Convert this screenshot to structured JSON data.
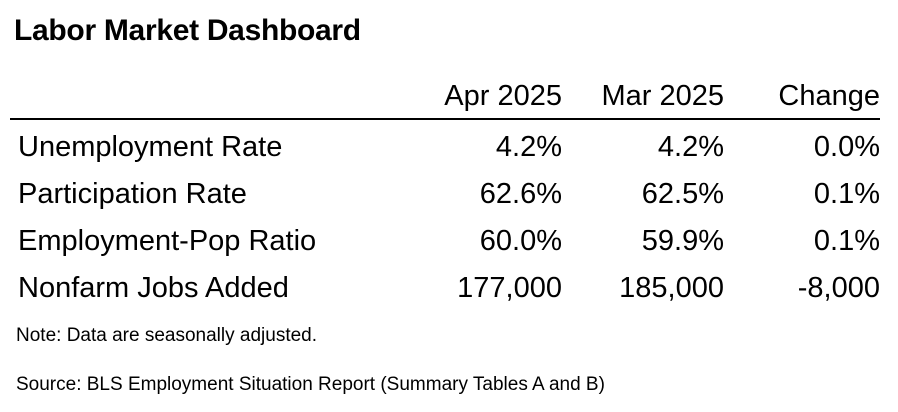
{
  "title": "Labor Market Dashboard",
  "chart_data": {
    "type": "table",
    "title": "Labor Market Dashboard",
    "columns": [
      "",
      "Apr 2025",
      "Mar 2025",
      "Change"
    ],
    "rows": [
      {
        "label": "Unemployment Rate",
        "apr": "4.2%",
        "mar": "4.2%",
        "change": "0.0%"
      },
      {
        "label": "Participation Rate",
        "apr": "62.6%",
        "mar": "62.5%",
        "change": "0.1%"
      },
      {
        "label": "Employment-Pop Ratio",
        "apr": "60.0%",
        "mar": "59.9%",
        "change": "0.1%"
      },
      {
        "label": "Nonfarm Jobs Added",
        "apr": "177,000",
        "mar": "185,000",
        "change": "-8,000"
      }
    ]
  },
  "note": "Note: Data are seasonally adjusted.",
  "source": "Source: BLS Employment Situation Report (Summary Tables A and B)"
}
